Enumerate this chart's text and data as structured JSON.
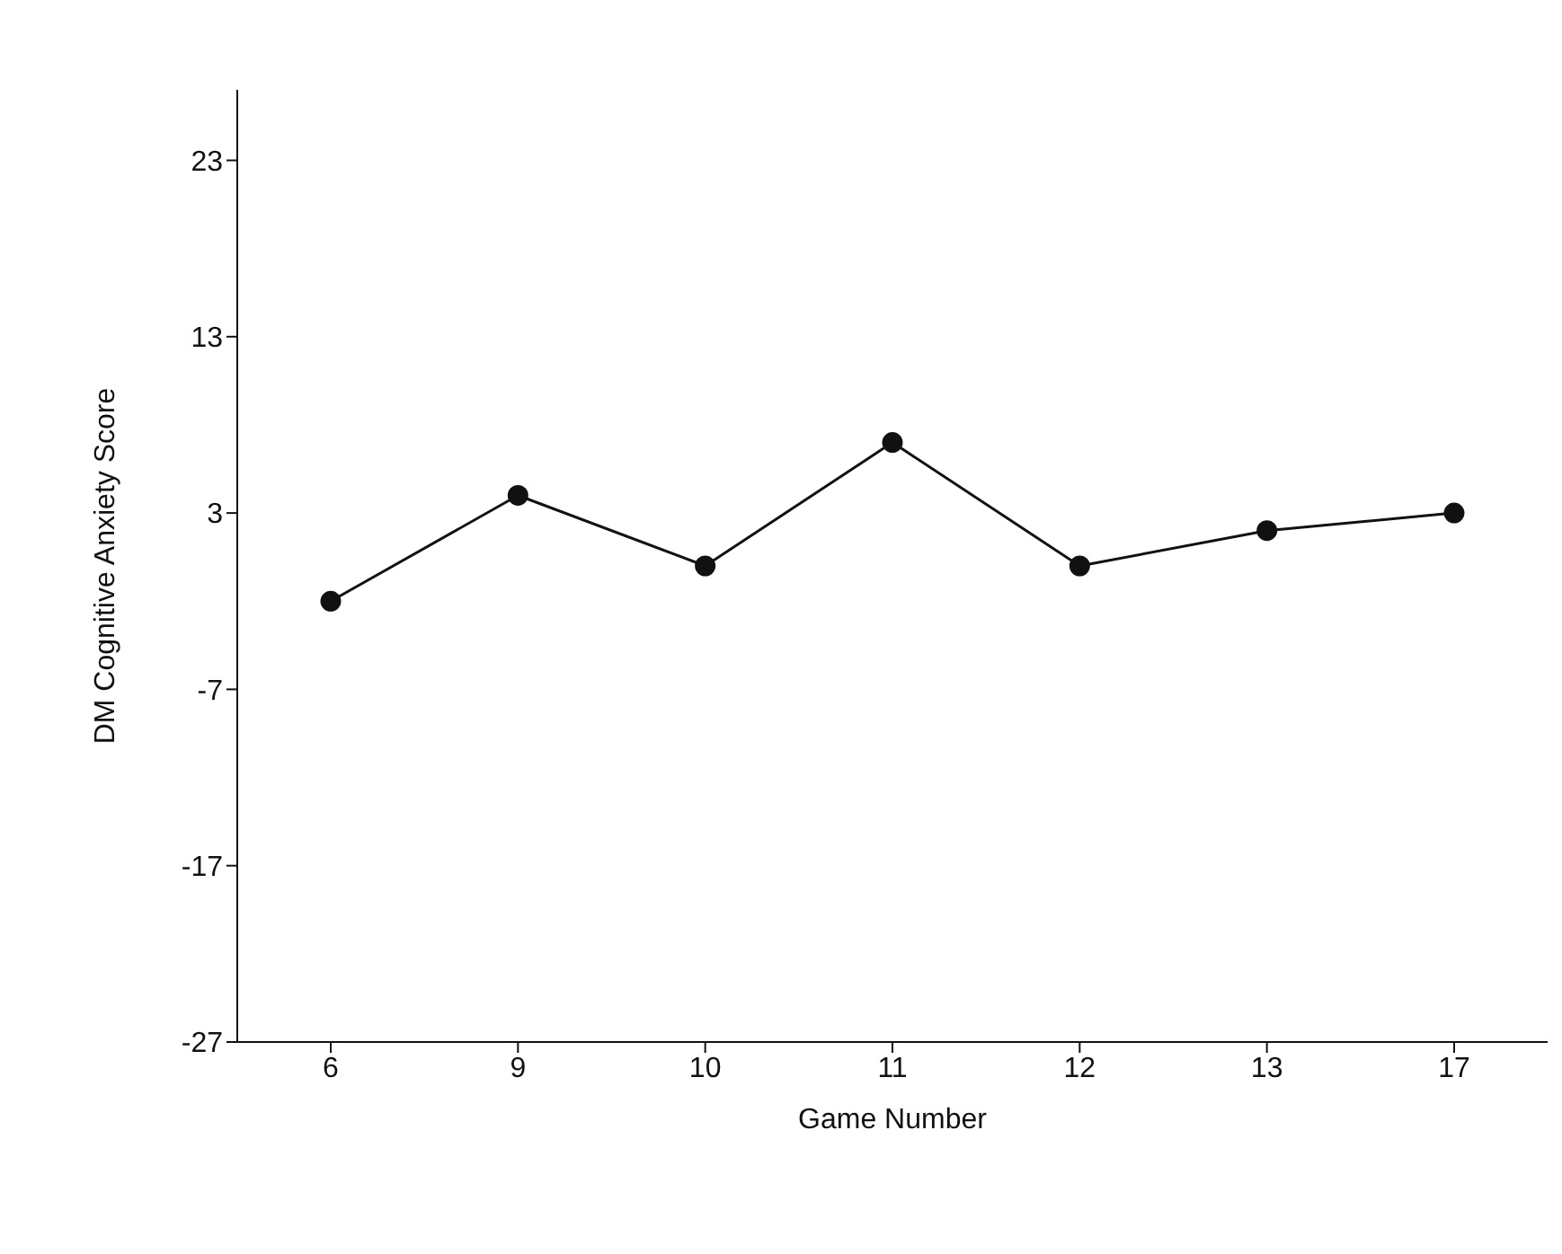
{
  "chart_data": {
    "type": "line",
    "xlabel": "Game Number",
    "ylabel": "DM Cognitive Anxiety Score",
    "categories": [
      "6",
      "9",
      "10",
      "11",
      "12",
      "13",
      "17"
    ],
    "values": [
      -2,
      4,
      0,
      7,
      0,
      2,
      3
    ],
    "color": "#111111",
    "marker": "circle",
    "line_style": "solid",
    "grid": false,
    "ylim": [
      -27,
      27
    ],
    "yticks": [
      -27,
      -17,
      -7,
      3,
      13,
      23
    ]
  }
}
